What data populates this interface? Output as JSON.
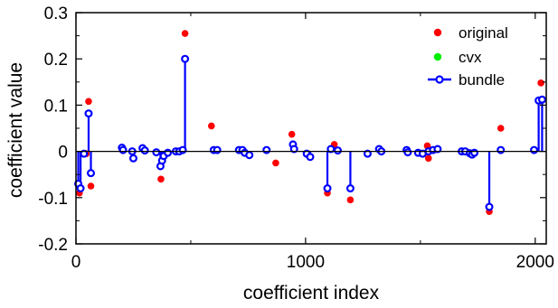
{
  "chart_data": {
    "type": "scatter",
    "title": "",
    "xlabel": "coefficient index",
    "ylabel": "coefficient value",
    "xlim": [
      0,
      2048
    ],
    "ylim": [
      -0.2,
      0.3
    ],
    "xticks": [
      0,
      1000,
      2000
    ],
    "xtick_labels": [
      "0",
      "1000",
      "2000"
    ],
    "yticks": [
      -0.2,
      -0.1,
      0,
      0.1,
      0.2,
      0.3
    ],
    "ytick_labels": [
      "-0.2",
      "-0.1",
      "0",
      "0.1",
      "0.2",
      "0.3"
    ],
    "grid": false,
    "legend_position": "top-right",
    "colors": {
      "original": "#ff0000",
      "cvx": "#00ee00",
      "bundle": "#0000ff",
      "axis": "#000000"
    },
    "series": [
      {
        "name": "original",
        "marker": "filled-dot",
        "points": [
          [
            15,
            -0.09
          ],
          [
            45,
            -0.005
          ],
          [
            55,
            0.108
          ],
          [
            65,
            -0.075
          ],
          [
            370,
            -0.06
          ],
          [
            475,
            0.255
          ],
          [
            590,
            0.055
          ],
          [
            870,
            -0.025
          ],
          [
            940,
            0.037
          ],
          [
            1095,
            -0.09
          ],
          [
            1125,
            0.015
          ],
          [
            1195,
            -0.105
          ],
          [
            1530,
            0.012
          ],
          [
            1535,
            -0.015
          ],
          [
            1800,
            -0.13
          ],
          [
            1850,
            0.05
          ],
          [
            2025,
            0.148
          ]
        ]
      },
      {
        "name": "cvx",
        "marker": "filled-dot",
        "points": []
      },
      {
        "name": "bundle",
        "marker": "open-circle-stem",
        "points": [
          [
            10,
            -0.07
          ],
          [
            20,
            -0.08
          ],
          [
            35,
            -0.005
          ],
          [
            55,
            0.082
          ],
          [
            65,
            -0.047
          ],
          [
            200,
            0.008
          ],
          [
            205,
            0.003
          ],
          [
            245,
            0.0
          ],
          [
            250,
            -0.015
          ],
          [
            290,
            0.007
          ],
          [
            300,
            0.002
          ],
          [
            350,
            -0.002
          ],
          [
            368,
            -0.032
          ],
          [
            375,
            -0.02
          ],
          [
            382,
            -0.01
          ],
          [
            400,
            -0.003
          ],
          [
            435,
            0.0
          ],
          [
            450,
            0.0
          ],
          [
            465,
            0.003
          ],
          [
            475,
            0.2
          ],
          [
            600,
            0.003
          ],
          [
            615,
            0.003
          ],
          [
            710,
            0.003
          ],
          [
            725,
            0.003
          ],
          [
            735,
            -0.003
          ],
          [
            755,
            -0.008
          ],
          [
            830,
            0.003
          ],
          [
            945,
            0.015
          ],
          [
            950,
            0.005
          ],
          [
            1005,
            -0.005
          ],
          [
            1020,
            -0.012
          ],
          [
            1095,
            -0.08
          ],
          [
            1110,
            0.005
          ],
          [
            1140,
            0.002
          ],
          [
            1195,
            -0.08
          ],
          [
            1270,
            -0.005
          ],
          [
            1320,
            0.005
          ],
          [
            1330,
            0.0
          ],
          [
            1440,
            0.003
          ],
          [
            1445,
            -0.002
          ],
          [
            1490,
            -0.003
          ],
          [
            1510,
            -0.005
          ],
          [
            1535,
            0.0
          ],
          [
            1555,
            0.003
          ],
          [
            1575,
            0.005
          ],
          [
            1680,
            0.0
          ],
          [
            1695,
            0.0
          ],
          [
            1715,
            -0.004
          ],
          [
            1725,
            -0.007
          ],
          [
            1735,
            -0.003
          ],
          [
            1800,
            -0.12
          ],
          [
            1850,
            0.003
          ],
          [
            1995,
            0.003
          ],
          [
            2015,
            0.11
          ],
          [
            2030,
            0.112
          ]
        ]
      }
    ]
  }
}
